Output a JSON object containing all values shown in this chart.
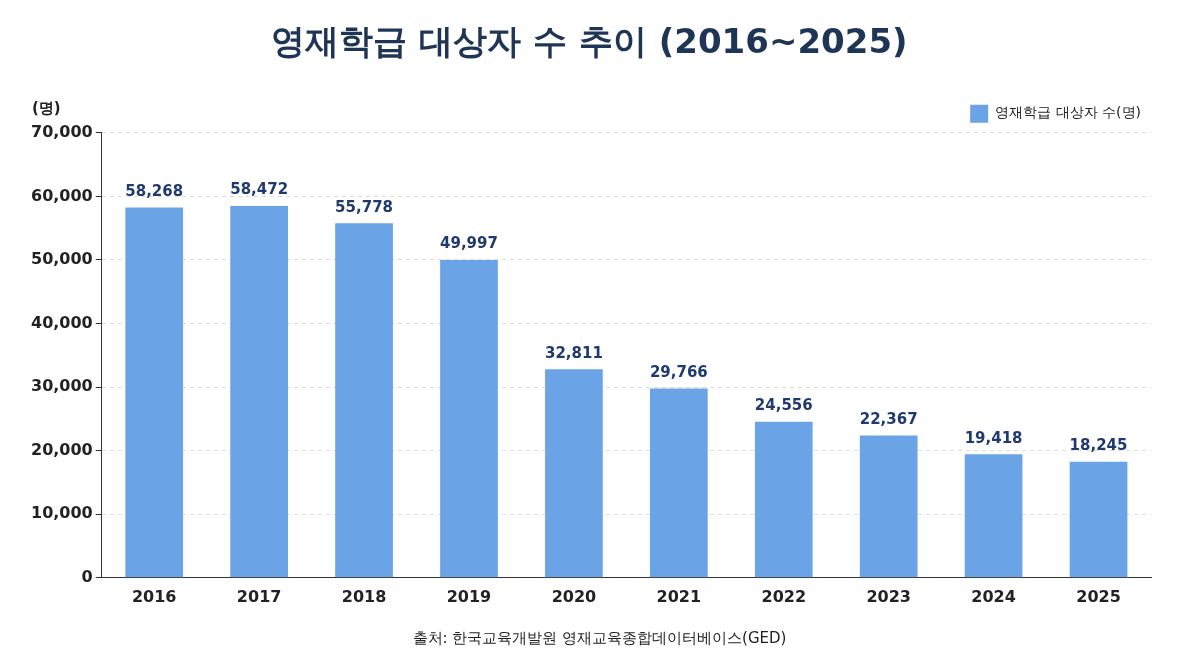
{
  "chart_data": {
    "type": "bar",
    "title": "영재학급 대상자 수 추이 (2016~2025)",
    "ylabel": "(명)",
    "categories": [
      "2016",
      "2017",
      "2018",
      "2019",
      "2020",
      "2021",
      "2022",
      "2023",
      "2024",
      "2025"
    ],
    "series": [
      {
        "name": "영재학급 대상자 수(명)",
        "color": "#6aa3e6",
        "values": [
          58268,
          58472,
          55778,
          49997,
          32811,
          29766,
          24556,
          22367,
          19418,
          18245
        ],
        "value_labels": [
          "58,268",
          "58,472",
          "55,778",
          "49,997",
          "32,811",
          "29,766",
          "24,556",
          "22,367",
          "19,418",
          "18,245"
        ]
      }
    ],
    "ylim": [
      0,
      70000
    ],
    "yticks": [
      {
        "value": 0,
        "label": "0"
      },
      {
        "value": 10000,
        "label": "10,000"
      },
      {
        "value": 20000,
        "label": "20,000"
      },
      {
        "value": 30000,
        "label": "30,000"
      },
      {
        "value": 40000,
        "label": "40,000"
      },
      {
        "value": 50000,
        "label": "50,000"
      },
      {
        "value": 60000,
        "label": "60,000"
      },
      {
        "value": 70000,
        "label": "70,000"
      }
    ],
    "grid": "y",
    "legend": "top right",
    "annotations": [
      "출처: 한국교육개발원 영재교육종합데이터베이스(GED)"
    ]
  }
}
